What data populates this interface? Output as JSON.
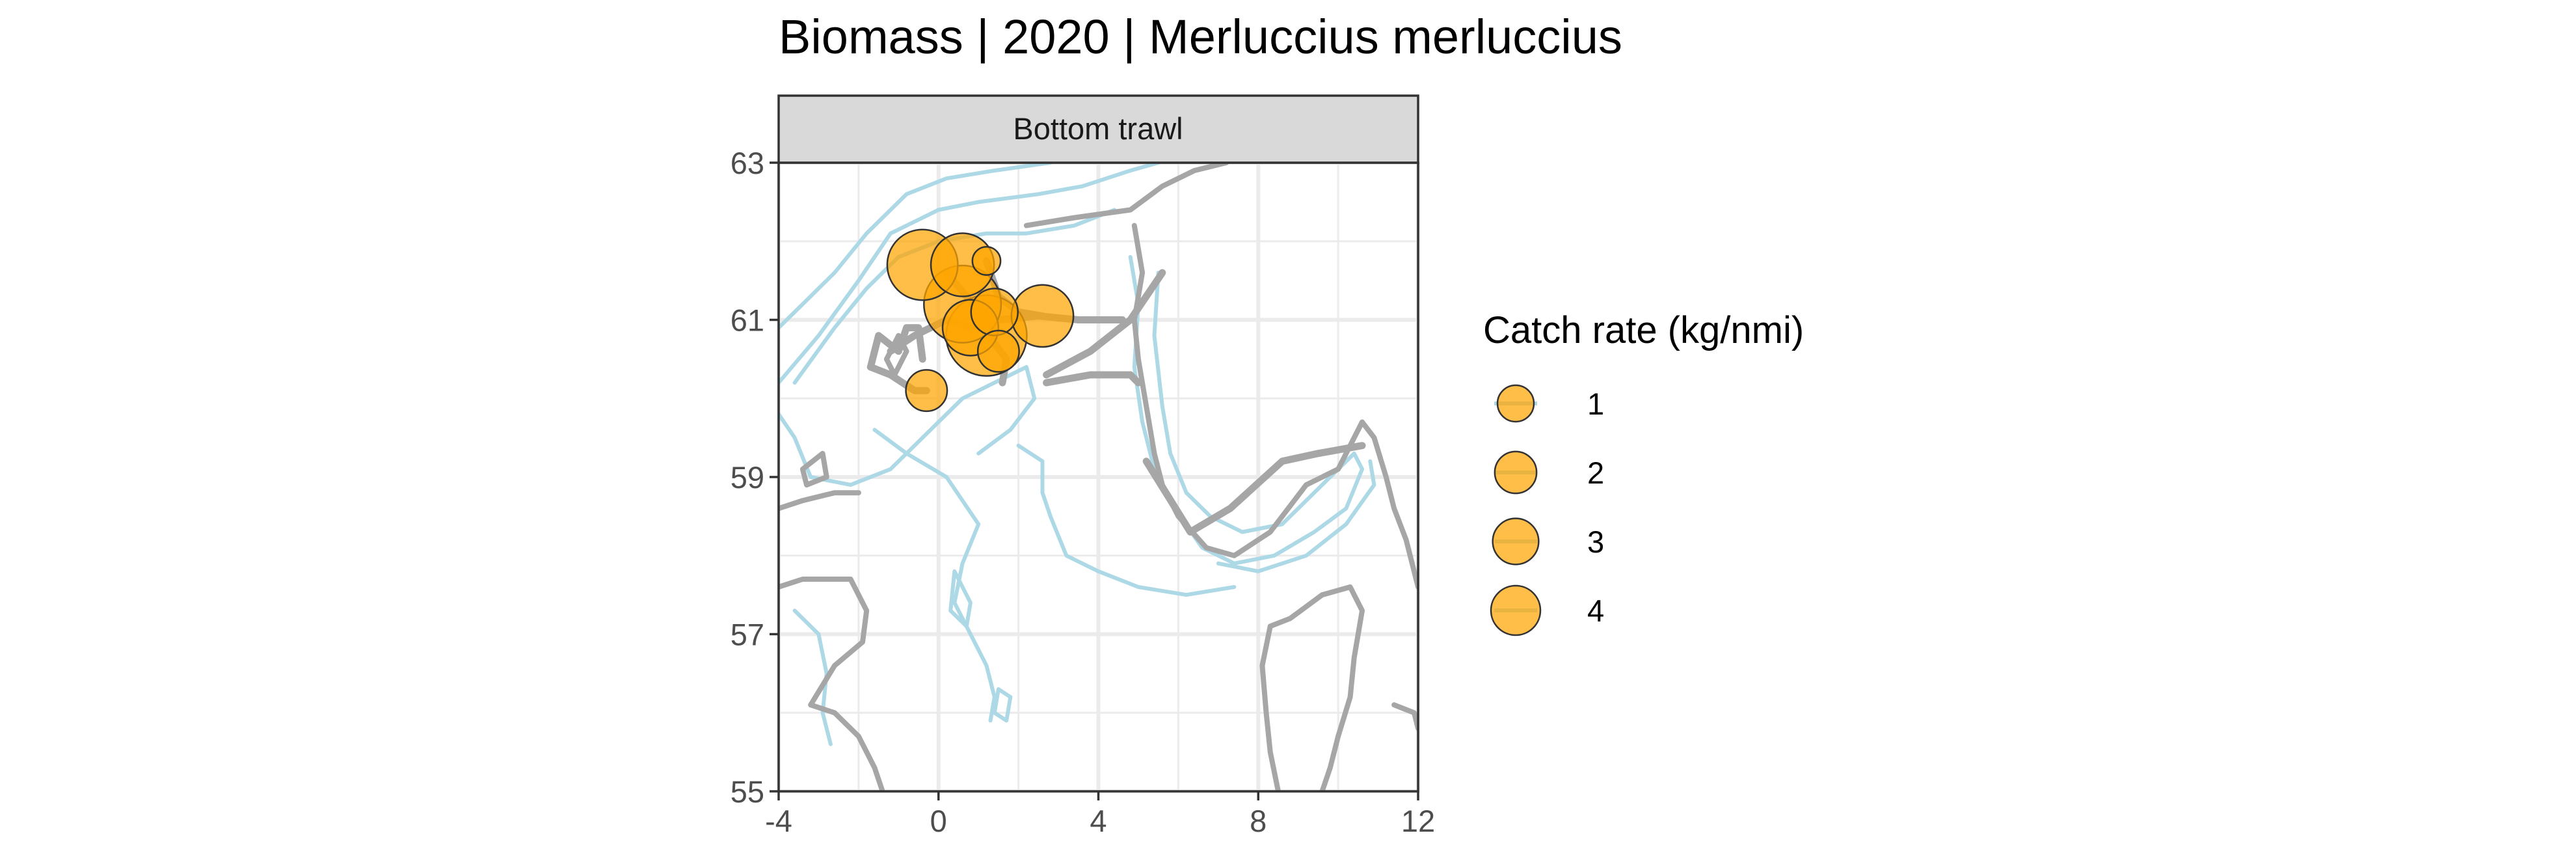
{
  "colors": {
    "panel_bg": "#ffffff",
    "grid": "#ebebeb",
    "strip_bg": "#d9d9d9",
    "border": "#333333",
    "coast": "#a6a6a6",
    "depth_contour": "#add8e6",
    "track": "#a6a6a6",
    "point_fill": "#ffa500",
    "point_stroke": "#333333"
  },
  "chart_data": {
    "type": "scatter",
    "title": "Biomass | 2020 | Merluccius merluccius",
    "facet": "Bottom trawl",
    "xlim": [
      -4,
      12
    ],
    "ylim": [
      55,
      63
    ],
    "x_ticks": [
      -4,
      0,
      4,
      8,
      12
    ],
    "y_ticks": [
      55,
      57,
      59,
      61,
      63
    ],
    "grid": true,
    "legend": {
      "title": "Catch rate (kg/nmi)",
      "placement": "right",
      "entries": [
        {
          "label": "1",
          "value": 1
        },
        {
          "label": "2",
          "value": 2
        },
        {
          "label": "3",
          "value": 3
        },
        {
          "label": "4",
          "value": 4
        }
      ]
    },
    "series": [
      {
        "points": [
          {
            "x": -0.4,
            "y": 61.7,
            "value": 2.9
          },
          {
            "x": 0.6,
            "y": 61.7,
            "value": 2.2
          },
          {
            "x": 1.2,
            "y": 61.75,
            "value": 0.2
          },
          {
            "x": 0.6,
            "y": 61.2,
            "value": 3.6
          },
          {
            "x": 0.8,
            "y": 60.9,
            "value": 1.6
          },
          {
            "x": 1.4,
            "y": 61.1,
            "value": 1.0
          },
          {
            "x": 1.2,
            "y": 60.8,
            "value": 4.0
          },
          {
            "x": 1.5,
            "y": 60.6,
            "value": 0.7
          },
          {
            "x": 2.6,
            "y": 61.05,
            "value": 2.1
          },
          {
            "x": -0.3,
            "y": 60.1,
            "value": 0.7
          }
        ]
      }
    ],
    "tracks": [
      [
        [
          -1.2,
          60.6
        ],
        [
          -0.6,
          60.8
        ],
        [
          0.2,
          61.0
        ],
        [
          0.8,
          60.9
        ],
        [
          1.5,
          61.0
        ],
        [
          2.5,
          61.05
        ],
        [
          3.5,
          61.0
        ],
        [
          4.6,
          61.0
        ]
      ],
      [
        [
          0.2,
          61.6
        ],
        [
          0.7,
          61.3
        ],
        [
          1.1,
          61.0
        ],
        [
          1.4,
          60.7
        ],
        [
          1.7,
          60.5
        ],
        [
          1.6,
          60.2
        ]
      ],
      [
        [
          1.2,
          61.75
        ],
        [
          1.5,
          61.3
        ],
        [
          2.0,
          61.1
        ],
        [
          2.6,
          61.05
        ]
      ],
      [
        [
          2.7,
          60.2
        ],
        [
          3.8,
          60.3
        ],
        [
          4.8,
          60.3
        ],
        [
          5.0,
          60.2
        ]
      ],
      [
        [
          2.7,
          60.3
        ],
        [
          3.8,
          60.6
        ],
        [
          4.8,
          61.0
        ],
        [
          5.6,
          61.6
        ]
      ],
      [
        [
          -1.7,
          60.4
        ],
        [
          -1.2,
          60.3
        ],
        [
          -0.6,
          60.1
        ],
        [
          -0.3,
          60.1
        ]
      ],
      [
        [
          -1.7,
          60.4
        ],
        [
          -1.5,
          60.8
        ],
        [
          -1.0,
          60.6
        ],
        [
          -0.8,
          60.9
        ],
        [
          -0.5,
          60.9
        ],
        [
          -0.4,
          60.5
        ]
      ],
      [
        [
          10.6,
          59.4
        ],
        [
          9.5,
          59.3
        ],
        [
          8.6,
          59.2
        ],
        [
          7.3,
          58.6
        ],
        [
          6.3,
          58.3
        ],
        [
          5.2,
          59.2
        ]
      ]
    ],
    "coastlines": [
      [
        [
          2.2,
          62.2
        ],
        [
          3.4,
          62.3
        ],
        [
          4.8,
          62.4
        ],
        [
          5.6,
          62.7
        ],
        [
          6.4,
          62.9
        ],
        [
          7.2,
          63.0
        ]
      ],
      [
        [
          4.9,
          62.2
        ],
        [
          5.1,
          61.6
        ],
        [
          4.9,
          61.0
        ],
        [
          5.0,
          60.5
        ],
        [
          5.2,
          59.9
        ],
        [
          5.4,
          59.3
        ],
        [
          5.6,
          58.9
        ],
        [
          6.0,
          58.5
        ],
        [
          6.7,
          58.1
        ],
        [
          7.4,
          58.0
        ],
        [
          8.3,
          58.3
        ],
        [
          9.2,
          58.9
        ],
        [
          10.0,
          59.1
        ],
        [
          10.6,
          59.7
        ],
        [
          10.9,
          59.5
        ],
        [
          11.2,
          59.0
        ],
        [
          11.4,
          58.6
        ],
        [
          11.7,
          58.2
        ],
        [
          11.9,
          57.8
        ],
        [
          12.0,
          57.6
        ]
      ],
      [
        [
          9.6,
          57.5
        ],
        [
          8.8,
          57.2
        ],
        [
          8.3,
          57.1
        ],
        [
          8.1,
          56.6
        ],
        [
          8.2,
          56.0
        ],
        [
          8.3,
          55.5
        ],
        [
          8.5,
          55.0
        ]
      ],
      [
        [
          9.6,
          57.5
        ],
        [
          10.3,
          57.6
        ],
        [
          10.6,
          57.3
        ],
        [
          10.4,
          56.7
        ],
        [
          10.3,
          56.2
        ],
        [
          10.0,
          55.7
        ],
        [
          9.8,
          55.3
        ],
        [
          9.6,
          55.0
        ]
      ],
      [
        [
          11.4,
          56.1
        ],
        [
          11.9,
          56.0
        ],
        [
          12.0,
          55.8
        ]
      ],
      [
        [
          -4.0,
          58.6
        ],
        [
          -3.4,
          58.7
        ],
        [
          -2.6,
          58.8
        ],
        [
          -2.0,
          58.8
        ]
      ],
      [
        [
          -2.2,
          57.7
        ],
        [
          -1.8,
          57.3
        ],
        [
          -1.9,
          56.9
        ],
        [
          -2.6,
          56.6
        ],
        [
          -3.2,
          56.1
        ],
        [
          -2.6,
          56.0
        ],
        [
          -2.0,
          55.7
        ],
        [
          -1.6,
          55.3
        ],
        [
          -1.4,
          55.0
        ]
      ],
      [
        [
          -4.0,
          57.6
        ],
        [
          -3.4,
          57.7
        ],
        [
          -2.6,
          57.7
        ],
        [
          -2.2,
          57.7
        ]
      ],
      [
        [
          -3.4,
          59.1
        ],
        [
          -2.9,
          59.3
        ],
        [
          -2.8,
          59.0
        ],
        [
          -3.3,
          58.9
        ],
        [
          -3.4,
          59.1
        ]
      ],
      [
        [
          -1.3,
          60.5
        ],
        [
          -1.0,
          60.8
        ],
        [
          -0.8,
          60.6
        ],
        [
          -1.1,
          60.3
        ],
        [
          -1.3,
          60.5
        ]
      ]
    ],
    "depth_contours": [
      [
        [
          -4.0,
          60.2
        ],
        [
          -3.0,
          60.8
        ],
        [
          -2.0,
          61.5
        ],
        [
          -1.2,
          62.1
        ],
        [
          0.0,
          62.4
        ],
        [
          1.0,
          62.5
        ],
        [
          2.5,
          62.6
        ],
        [
          3.6,
          62.7
        ],
        [
          4.8,
          62.9
        ],
        [
          5.5,
          63.0
        ]
      ],
      [
        [
          -4.0,
          60.9
        ],
        [
          -3.2,
          61.3
        ],
        [
          -2.6,
          61.6
        ],
        [
          -1.8,
          62.1
        ],
        [
          -0.8,
          62.6
        ],
        [
          0.2,
          62.8
        ],
        [
          1.4,
          62.9
        ],
        [
          2.8,
          63.0
        ]
      ],
      [
        [
          -3.6,
          60.2
        ],
        [
          -2.6,
          60.9
        ],
        [
          -1.8,
          61.4
        ],
        [
          -1.0,
          61.8
        ],
        [
          0.0,
          62.0
        ],
        [
          1.2,
          62.1
        ],
        [
          2.2,
          62.1
        ],
        [
          3.4,
          62.2
        ],
        [
          4.4,
          62.4
        ]
      ],
      [
        [
          4.8,
          61.8
        ],
        [
          5.0,
          61.2
        ],
        [
          4.9,
          60.4
        ],
        [
          5.1,
          59.7
        ],
        [
          5.4,
          59.1
        ],
        [
          5.9,
          58.6
        ],
        [
          6.6,
          58.1
        ],
        [
          7.4,
          57.9
        ],
        [
          8.4,
          58.0
        ],
        [
          9.4,
          58.3
        ],
        [
          10.2,
          58.6
        ],
        [
          10.6,
          59.1
        ],
        [
          10.4,
          59.3
        ],
        [
          9.6,
          58.9
        ],
        [
          8.6,
          58.4
        ],
        [
          7.6,
          58.3
        ],
        [
          6.8,
          58.5
        ],
        [
          6.2,
          58.8
        ],
        [
          5.8,
          59.3
        ],
        [
          5.6,
          59.9
        ],
        [
          5.4,
          60.8
        ],
        [
          5.5,
          61.6
        ]
      ],
      [
        [
          7.0,
          57.9
        ],
        [
          8.0,
          57.8
        ],
        [
          9.2,
          58.0
        ],
        [
          10.2,
          58.4
        ],
        [
          10.9,
          58.9
        ],
        [
          10.8,
          59.2
        ]
      ],
      [
        [
          -1.6,
          59.6
        ],
        [
          -0.8,
          59.3
        ],
        [
          0.2,
          59.0
        ],
        [
          1.0,
          58.4
        ],
        [
          0.6,
          57.9
        ],
        [
          0.4,
          57.4
        ],
        [
          0.8,
          57.0
        ],
        [
          1.2,
          56.6
        ],
        [
          1.4,
          56.2
        ],
        [
          1.3,
          55.9
        ]
      ],
      [
        [
          2.0,
          59.4
        ],
        [
          2.6,
          59.2
        ],
        [
          2.6,
          58.8
        ],
        [
          2.8,
          58.5
        ],
        [
          3.2,
          58.0
        ],
        [
          4.0,
          57.8
        ],
        [
          5.0,
          57.6
        ],
        [
          6.2,
          57.5
        ],
        [
          7.4,
          57.6
        ]
      ],
      [
        [
          -3.6,
          57.3
        ],
        [
          -3.0,
          57.0
        ],
        [
          -2.8,
          56.5
        ],
        [
          -2.9,
          56.0
        ],
        [
          -2.7,
          55.6
        ]
      ],
      [
        [
          -4.0,
          59.8
        ],
        [
          -3.6,
          59.5
        ],
        [
          -3.2,
          59.0
        ],
        [
          -2.2,
          58.9
        ],
        [
          -1.2,
          59.1
        ],
        [
          -0.2,
          59.6
        ],
        [
          0.6,
          60.0
        ],
        [
          1.4,
          60.2
        ],
        [
          2.2,
          60.4
        ],
        [
          2.4,
          60.0
        ],
        [
          1.8,
          59.6
        ],
        [
          1.0,
          59.3
        ]
      ],
      [
        [
          0.4,
          57.8
        ],
        [
          0.8,
          57.4
        ],
        [
          0.7,
          57.1
        ],
        [
          0.3,
          57.3
        ],
        [
          0.4,
          57.8
        ]
      ],
      [
        [
          1.5,
          56.3
        ],
        [
          1.8,
          56.2
        ],
        [
          1.7,
          55.9
        ],
        [
          1.4,
          56.0
        ],
        [
          1.5,
          56.3
        ]
      ]
    ]
  }
}
